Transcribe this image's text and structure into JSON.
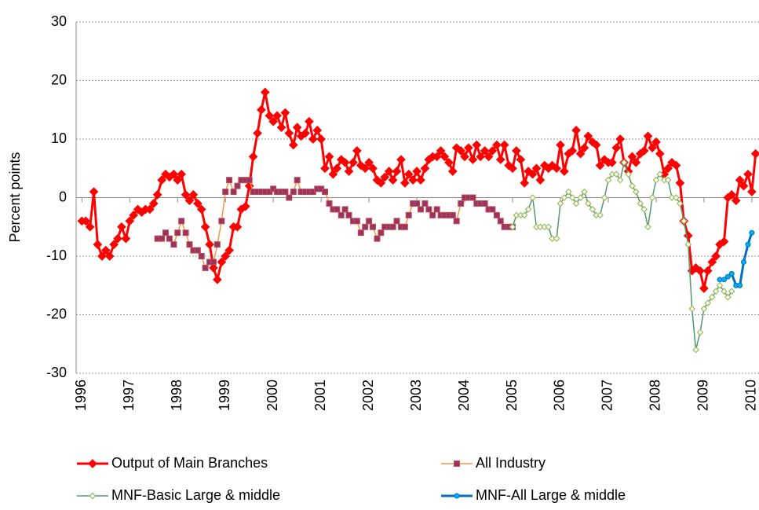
{
  "chart_data": {
    "type": "line",
    "y_label": "Percent points",
    "xlim": [
      1995.88,
      2010.15
    ],
    "xticks": [
      1996,
      1997,
      1998,
      1999,
      2000,
      2001,
      2002,
      2003,
      2004,
      2005,
      2006,
      2007,
      2008,
      2009,
      2010
    ],
    "ylim": [
      -30,
      30
    ],
    "yticks": [
      -30,
      -20,
      -10,
      0,
      10,
      20,
      30
    ],
    "grid": true,
    "legend": "bottom",
    "series": [
      {
        "name": "Output of Main Branches",
        "color": "#ff0000",
        "marker": "diamond",
        "marker_color": "#ff0000",
        "width": 3,
        "x": [
          1996,
          1996.08,
          1996.17,
          1996.25,
          1996.33,
          1996.42,
          1996.5,
          1996.58,
          1996.67,
          1996.75,
          1996.83,
          1996.92,
          1997,
          1997.08,
          1997.17,
          1997.25,
          1997.33,
          1997.42,
          1997.5,
          1997.58,
          1997.67,
          1997.75,
          1997.83,
          1997.92,
          1998,
          1998.08,
          1998.17,
          1998.25,
          1998.33,
          1998.42,
          1998.5,
          1998.58,
          1998.67,
          1998.75,
          1998.83,
          1998.92,
          1999,
          1999.08,
          1999.17,
          1999.25,
          1999.33,
          1999.42,
          1999.5,
          1999.58,
          1999.67,
          1999.75,
          1999.83,
          1999.92,
          2000,
          2000.08,
          2000.17,
          2000.25,
          2000.33,
          2000.42,
          2000.5,
          2000.58,
          2000.67,
          2000.75,
          2000.83,
          2000.92,
          2001,
          2001.08,
          2001.17,
          2001.25,
          2001.33,
          2001.42,
          2001.5,
          2001.58,
          2001.67,
          2001.75,
          2001.83,
          2001.92,
          2002,
          2002.08,
          2002.17,
          2002.25,
          2002.33,
          2002.42,
          2002.5,
          2002.58,
          2002.67,
          2002.75,
          2002.83,
          2002.92,
          2003,
          2003.08,
          2003.17,
          2003.25,
          2003.33,
          2003.42,
          2003.5,
          2003.58,
          2003.67,
          2003.75,
          2003.83,
          2003.92,
          2004,
          2004.08,
          2004.17,
          2004.25,
          2004.33,
          2004.42,
          2004.5,
          2004.58,
          2004.67,
          2004.75,
          2004.83,
          2004.92,
          2005,
          2005.08,
          2005.17,
          2005.25,
          2005.33,
          2005.42,
          2005.5,
          2005.58,
          2005.67,
          2005.75,
          2005.83,
          2005.92,
          2006,
          2006.08,
          2006.17,
          2006.25,
          2006.33,
          2006.42,
          2006.5,
          2006.58,
          2006.67,
          2006.75,
          2006.83,
          2006.92,
          2007,
          2007.08,
          2007.17,
          2007.25,
          2007.33,
          2007.42,
          2007.5,
          2007.58,
          2007.67,
          2007.75,
          2007.83,
          2007.92,
          2008,
          2008.08,
          2008.17,
          2008.25,
          2008.33,
          2008.42,
          2008.5,
          2008.58,
          2008.67,
          2008.75,
          2008.83,
          2008.92,
          2009,
          2009.08,
          2009.17,
          2009.25,
          2009.33,
          2009.42,
          2009.5,
          2009.58,
          2009.67,
          2009.75,
          2009.83,
          2009.92,
          2010,
          2010.08
        ],
        "values": [
          -4,
          -4,
          -5,
          1,
          -8,
          -10,
          -9,
          -10,
          -8,
          -7,
          -5,
          -7,
          -4,
          -3,
          -2,
          -2.5,
          -2,
          -2,
          -1,
          0.5,
          3,
          4,
          3.5,
          4,
          3,
          4,
          0.5,
          -0.5,
          0.5,
          -1,
          -2,
          -5,
          -8,
          -12,
          -14,
          -11,
          -10,
          -9,
          -5,
          -5,
          -2,
          -1.5,
          2,
          7,
          11,
          15,
          18,
          14,
          13,
          14,
          12,
          14.5,
          11,
          9,
          12,
          10.5,
          11,
          13,
          10,
          11.5,
          10,
          5,
          7,
          4,
          5,
          6.5,
          6,
          4.5,
          6,
          8,
          5.5,
          5,
          6,
          5,
          3,
          2.5,
          3.5,
          4.5,
          3,
          4.5,
          6.5,
          2.5,
          4,
          3,
          4.5,
          3,
          5,
          6.5,
          7,
          7,
          8,
          7,
          6,
          4.5,
          8.5,
          8,
          7,
          8.5,
          6.5,
          9,
          7,
          8,
          7,
          8,
          9,
          6.5,
          9,
          5.5,
          5,
          8,
          6.5,
          2.5,
          4.5,
          4,
          5,
          3,
          5.5,
          5,
          5.5,
          5,
          9,
          4.5,
          7.5,
          8,
          11.5,
          7.5,
          8.5,
          10.5,
          9.5,
          9,
          5.5,
          6.5,
          6,
          6,
          8.5,
          10,
          6,
          4.5,
          7,
          6,
          7.5,
          8,
          10.5,
          8.5,
          9.5,
          7.5,
          4,
          5,
          6,
          5.5,
          2.5,
          -4,
          -6.5,
          -12.5,
          -12,
          -12.5,
          -15.5,
          -12.5,
          -11,
          -10,
          -8,
          -7.5,
          0,
          0.5,
          -0.5,
          3,
          2,
          4,
          1,
          7.5
        ]
      },
      {
        "name": "All Industry",
        "color": "#f79646",
        "marker": "square",
        "marker_color": "#993366",
        "width": 1.5,
        "x": [
          1997.58,
          1997.67,
          1997.75,
          1997.83,
          1997.92,
          1998,
          1998.08,
          1998.17,
          1998.25,
          1998.33,
          1998.42,
          1998.5,
          1998.58,
          1998.67,
          1998.75,
          1998.83,
          1998.92,
          1999,
          1999.08,
          1999.17,
          1999.25,
          1999.33,
          1999.42,
          1999.5,
          1999.58,
          1999.67,
          1999.75,
          1999.83,
          1999.92,
          2000,
          2000.08,
          2000.17,
          2000.25,
          2000.33,
          2000.42,
          2000.5,
          2000.58,
          2000.67,
          2000.75,
          2000.83,
          2000.92,
          2001,
          2001.08,
          2001.17,
          2001.25,
          2001.33,
          2001.42,
          2001.5,
          2001.58,
          2001.67,
          2001.75,
          2001.83,
          2001.92,
          2002,
          2002.08,
          2002.17,
          2002.25,
          2002.33,
          2002.42,
          2002.5,
          2002.58,
          2002.67,
          2002.75,
          2002.83,
          2002.92,
          2003,
          2003.08,
          2003.17,
          2003.25,
          2003.33,
          2003.42,
          2003.5,
          2003.58,
          2003.67,
          2003.75,
          2003.83,
          2003.92,
          2004,
          2004.08,
          2004.17,
          2004.25,
          2004.33,
          2004.42,
          2004.5,
          2004.58,
          2004.67,
          2004.75,
          2004.83,
          2004.92,
          2005
        ],
        "values": [
          -7,
          -7,
          -6,
          -7,
          -8,
          -6,
          -4,
          -6,
          -8,
          -9,
          -9,
          -10,
          -12,
          -11,
          -11,
          -8,
          -4,
          1,
          3,
          1,
          2,
          3,
          3,
          3,
          1,
          1,
          1,
          1,
          1,
          1.5,
          1,
          1,
          1,
          0,
          1,
          3,
          1,
          1,
          1,
          1,
          1.5,
          1.5,
          1,
          -1,
          -2,
          -2,
          -3,
          -2,
          -3,
          -4,
          -4,
          -6,
          -5,
          -4,
          -5,
          -7,
          -6,
          -5,
          -5,
          -5,
          -4,
          -5,
          -5,
          -3,
          -1,
          -1,
          -2,
          -1,
          -2,
          -3,
          -2,
          -3,
          -3,
          -3,
          -3,
          -4,
          -1,
          0,
          0,
          0,
          -1,
          -1,
          -1,
          -2,
          -2,
          -3,
          -4,
          -5,
          -5,
          -5
        ]
      },
      {
        "name": "MNF-Basic Large & middle",
        "color": "#4f9a6a",
        "marker": "diamond-open",
        "marker_color": "#9bbb59",
        "width": 1.5,
        "x": [
          2005,
          2005.08,
          2005.17,
          2005.25,
          2005.33,
          2005.42,
          2005.5,
          2005.58,
          2005.67,
          2005.75,
          2005.83,
          2005.92,
          2006,
          2006.08,
          2006.17,
          2006.25,
          2006.33,
          2006.42,
          2006.5,
          2006.58,
          2006.67,
          2006.75,
          2006.83,
          2006.92,
          2007,
          2007.08,
          2007.17,
          2007.25,
          2007.33,
          2007.42,
          2007.5,
          2007.58,
          2007.67,
          2007.75,
          2007.83,
          2007.92,
          2008,
          2008.08,
          2008.17,
          2008.25,
          2008.33,
          2008.42,
          2008.5,
          2008.58,
          2008.67,
          2008.75,
          2008.83,
          2008.92,
          2009,
          2009.08,
          2009.17,
          2009.25,
          2009.33,
          2009.42,
          2009.5,
          2009.58
        ],
        "values": [
          -5,
          -3,
          -3,
          -3,
          -2,
          0,
          -5,
          -5,
          -5,
          -5,
          -7,
          -7,
          -1,
          0,
          1,
          0,
          -1,
          0,
          1,
          -1,
          -2,
          -3,
          -3,
          0,
          3,
          4,
          4,
          3,
          6,
          4,
          2,
          1,
          -1,
          -2,
          -5,
          0,
          3,
          4,
          3,
          3,
          0,
          0,
          -1,
          -4,
          -8,
          -19,
          -26,
          -23,
          -19,
          -18,
          -17,
          -16,
          -15,
          -16,
          -17,
          -16
        ]
      },
      {
        "name": "MNF-All Large & middle",
        "color": "#0070c0",
        "marker": "circle",
        "marker_color": "#00b0f0",
        "width": 3,
        "x": [
          2009.33,
          2009.42,
          2009.5,
          2009.58,
          2009.67,
          2009.75,
          2009.83,
          2009.92,
          2010
        ],
        "values": [
          -14,
          -14,
          -13.5,
          -13,
          -15,
          -15,
          -11,
          -8,
          -6
        ]
      }
    ]
  }
}
